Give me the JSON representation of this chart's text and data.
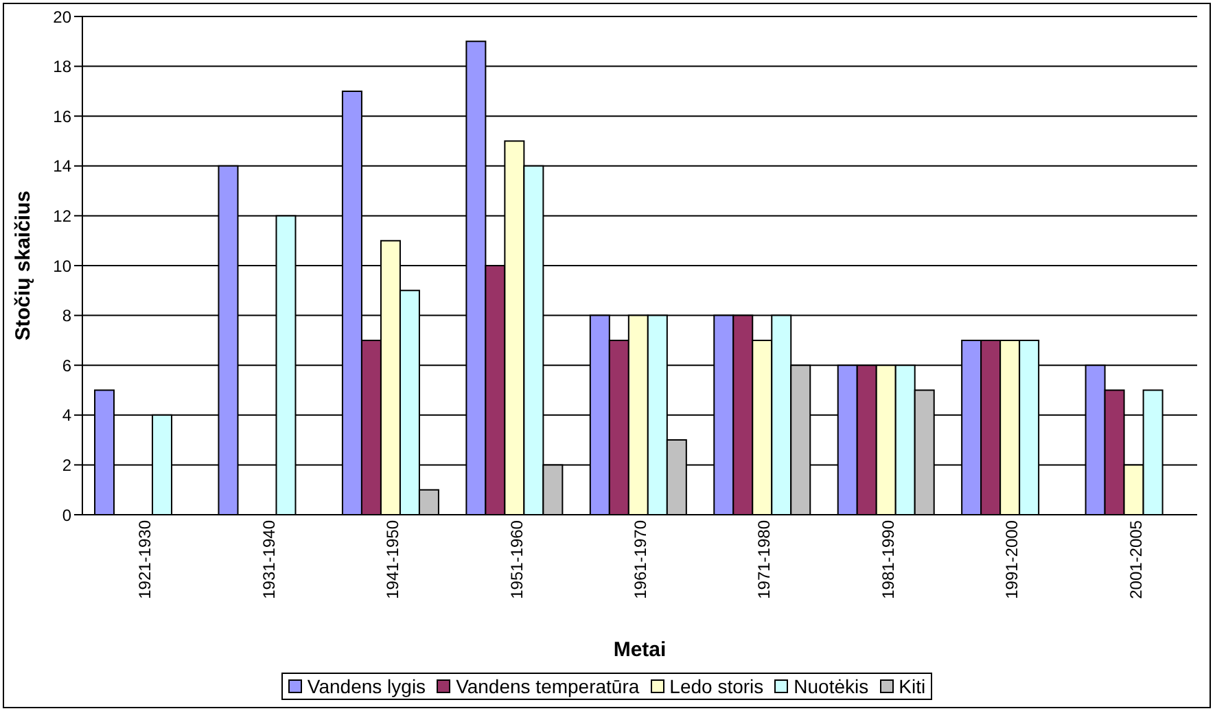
{
  "chart_data": {
    "type": "bar",
    "xlabel": "Metai",
    "ylabel": "Stočių skaičius",
    "categories": [
      "1921-1930",
      "1931-1940",
      "1941-1950",
      "1951-1960",
      "1961-1970",
      "1971-1980",
      "1981-1990",
      "1991-2000",
      "2001-2005"
    ],
    "series": [
      {
        "name": "Vandens lygis",
        "color": "#9999ff",
        "values": [
          5,
          14,
          17,
          19,
          8,
          8,
          6,
          7,
          6
        ]
      },
      {
        "name": "Vandens temperatūra",
        "color": "#993366",
        "values": [
          null,
          null,
          7,
          10,
          7,
          8,
          6,
          7,
          5
        ]
      },
      {
        "name": "Ledo storis",
        "color": "#ffffcc",
        "values": [
          null,
          null,
          11,
          15,
          8,
          7,
          6,
          7,
          2
        ]
      },
      {
        "name": "Nuotėkis",
        "color": "#ccffff",
        "values": [
          4,
          12,
          9,
          14,
          8,
          8,
          6,
          7,
          5
        ]
      },
      {
        "name": "Kiti",
        "color": "#c0c0c0",
        "values": [
          null,
          null,
          1,
          2,
          3,
          6,
          5,
          null,
          null
        ]
      }
    ],
    "ylim": [
      0,
      20
    ],
    "yticks": [
      0,
      2,
      4,
      6,
      8,
      10,
      12,
      14,
      16,
      18,
      20
    ],
    "grid": "y",
    "legend": "bottom"
  }
}
